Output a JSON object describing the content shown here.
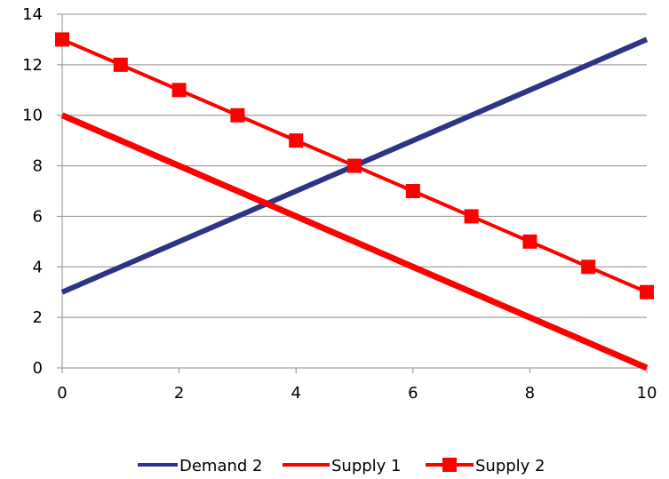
{
  "chart_data": {
    "type": "line",
    "title": "",
    "xlabel": "",
    "ylabel": "",
    "xlim": [
      0,
      10
    ],
    "ylim": [
      0,
      14
    ],
    "x_ticks": [
      "0",
      "2",
      "4",
      "6",
      "8",
      "10"
    ],
    "y_ticks": [
      "0",
      "2",
      "4",
      "6",
      "8",
      "10",
      "12",
      "14"
    ],
    "grid": {
      "horizontal": true,
      "vertical": false
    },
    "legend_position": "bottom",
    "series": [
      {
        "name": "Demand 2",
        "color": "#2E3485",
        "markers": false,
        "x": [
          0,
          10
        ],
        "y": [
          3,
          13
        ]
      },
      {
        "name": "Supply 1",
        "color": "#FF0000",
        "markers": false,
        "x": [
          0,
          10
        ],
        "y": [
          10,
          0
        ]
      },
      {
        "name": "Supply 2",
        "color": "#FF0000",
        "markers": true,
        "marker": "square",
        "x": [
          0,
          1,
          2,
          3,
          4,
          5,
          6,
          7,
          8,
          9,
          10
        ],
        "y": [
          13,
          12,
          11,
          10,
          9,
          8,
          7,
          6,
          5,
          4,
          3
        ]
      }
    ]
  }
}
